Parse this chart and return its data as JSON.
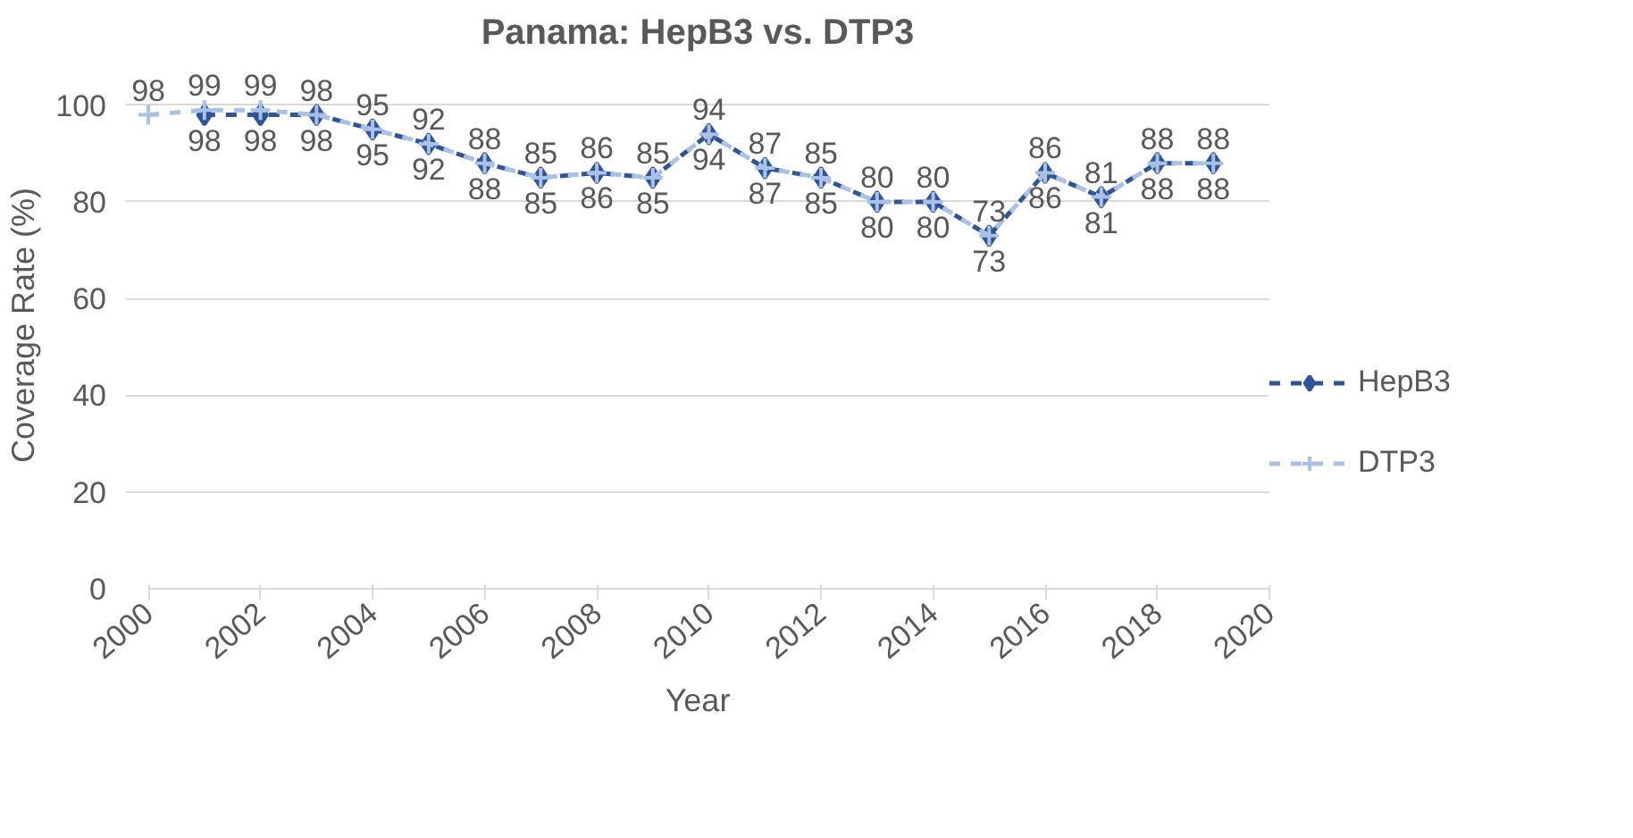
{
  "chart_data": {
    "type": "line",
    "title": "Panama: HepB3 vs. DTP3",
    "xlabel": "Year",
    "ylabel": "Coverage Rate (%)",
    "x": [
      2000,
      2001,
      2002,
      2003,
      2004,
      2005,
      2006,
      2007,
      2008,
      2009,
      2010,
      2011,
      2012,
      2013,
      2014,
      2015,
      2016,
      2017,
      2018,
      2019
    ],
    "series": [
      {
        "name": "HepB3",
        "color": "#2f5597",
        "marker": "diamond",
        "values": [
          null,
          98,
          98,
          98,
          95,
          92,
          88,
          85,
          86,
          85,
          94,
          87,
          85,
          80,
          80,
          73,
          86,
          81,
          88,
          88
        ]
      },
      {
        "name": "DTP3",
        "color": "#a9c1e6",
        "marker": "cross",
        "values": [
          98,
          99,
          99,
          98,
          95,
          92,
          88,
          85,
          86,
          85,
          94,
          87,
          85,
          80,
          80,
          73,
          86,
          81,
          88,
          88
        ]
      }
    ],
    "line_style": "dashed",
    "xlim": [
      2000,
      2020
    ],
    "xticks": [
      2000,
      2002,
      2004,
      2006,
      2008,
      2010,
      2012,
      2014,
      2016,
      2018,
      2020
    ],
    "ylim": [
      0,
      100
    ],
    "yticks": [
      0,
      20,
      40,
      60,
      80,
      100
    ],
    "grid": "y",
    "legend": "right",
    "data_labels": true
  }
}
